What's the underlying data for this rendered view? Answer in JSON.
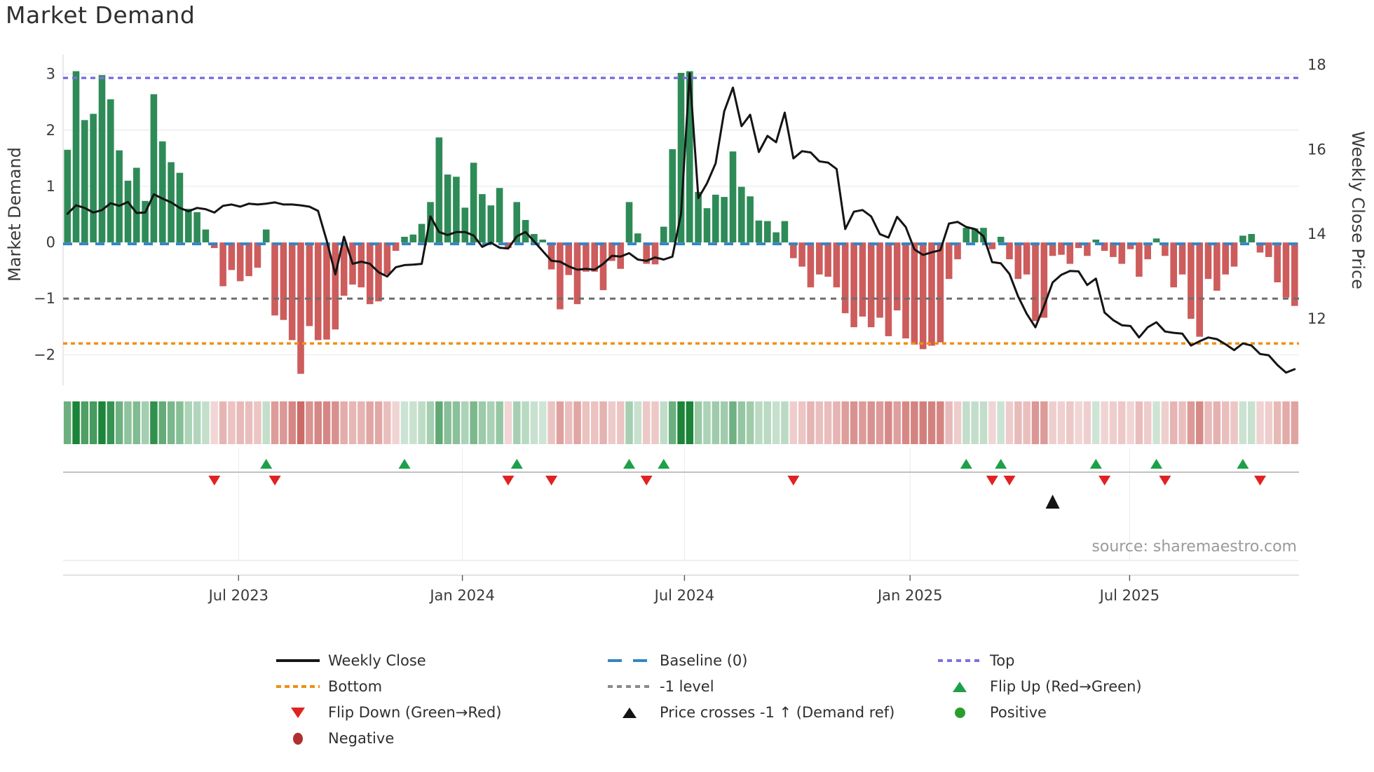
{
  "title": "Market Demand",
  "source": "source: sharemaestro.com",
  "axes": {
    "left_label": "Market Demand",
    "right_label": "Weekly Close Price",
    "left_ticks": [
      {
        "v": 3,
        "label": "3"
      },
      {
        "v": 2,
        "label": "2"
      },
      {
        "v": 1,
        "label": "1"
      },
      {
        "v": 0,
        "label": "0"
      },
      {
        "v": -1,
        "label": "−1"
      },
      {
        "v": -2,
        "label": "−2"
      }
    ],
    "right_ticks": [
      {
        "v": 18,
        "label": "18"
      },
      {
        "v": 16,
        "label": "16"
      },
      {
        "v": 14,
        "label": "14"
      },
      {
        "v": 12,
        "label": "12"
      }
    ],
    "x_ticks": [
      {
        "pos": 19.8,
        "label": "Jul 2023"
      },
      {
        "pos": 45.7,
        "label": "Jan 2024"
      },
      {
        "pos": 71.4,
        "label": "Jul 2024"
      },
      {
        "pos": 97.5,
        "label": "Jan 2025"
      },
      {
        "pos": 122.9,
        "label": "Jul 2025"
      }
    ]
  },
  "legend": {
    "items": [
      {
        "label": "Weekly Close",
        "swatch": "line-black"
      },
      {
        "label": "Bottom",
        "swatch": "dot-orange"
      },
      {
        "label": "Flip Down (Green→Red)",
        "swatch": "tri-down-red"
      },
      {
        "label": "Negative",
        "swatch": "circle-red"
      },
      {
        "label": "Baseline (0)",
        "swatch": "dash-blue"
      },
      {
        "label": "-1 level",
        "swatch": "dot-gray"
      },
      {
        "label": "Price crosses -1 ↑ (Demand ref)",
        "swatch": "tri-up-black"
      },
      {
        "label": "Top",
        "swatch": "dot-purple"
      },
      {
        "label": "Flip Up (Red→Green)",
        "swatch": "tri-up-green"
      },
      {
        "label": "Positive",
        "swatch": "circle-green"
      }
    ]
  },
  "colors": {
    "bar_positive": "#2e8b57",
    "bar_negative": "#cd5c5c",
    "price_line": "#141414",
    "baseline": "#3585c0",
    "top_line": "#7b72e0",
    "bottom_line": "#ef9110",
    "minus1_line": "#6e6e6e",
    "flip_up": "#1da04a",
    "flip_down": "#e02222",
    "price_cross": "#141414",
    "heat_green": "#1b8439",
    "heat_red": "#c04a46",
    "grid": "#e9e9f1",
    "spine": "#d9d9e3",
    "flip_row_line": "#c2c2c2",
    "sub_grid": "#ededf3",
    "axis_line": "#cfcfd6",
    "text": "#3a3a3a",
    "muted_text": "#9a9a9a"
  },
  "chart_data": {
    "type": "bar+line",
    "x_unit": "week",
    "x_start": "2023-02",
    "x_end": "2025-11",
    "n_points": 143,
    "ylabel_left": "Market Demand",
    "ylabel_right": "Weekly Close Price",
    "demand_range": [
      -2.545,
      3.345
    ],
    "price_range": [
      10.43,
      18.24
    ],
    "grid": true,
    "legend_position": "bottom",
    "ref_lines": {
      "top": 2.93,
      "baseline": 0,
      "minus1": -1,
      "bottom": -1.8
    },
    "demand": [
      1.65,
      3.05,
      2.18,
      2.29,
      2.98,
      2.55,
      1.64,
      1.1,
      1.33,
      0.74,
      2.64,
      1.8,
      1.43,
      1.24,
      0.6,
      0.54,
      0.23,
      -0.1,
      -0.78,
      -0.49,
      -0.69,
      -0.6,
      -0.45,
      0.23,
      -1.3,
      -1.38,
      -1.74,
      -2.34,
      -1.49,
      -1.74,
      -1.73,
      -1.55,
      -0.95,
      -0.75,
      -0.8,
      -1.1,
      -1.05,
      -0.57,
      -0.15,
      0.1,
      0.14,
      0.33,
      0.72,
      1.87,
      1.21,
      1.17,
      0.62,
      1.42,
      0.86,
      0.66,
      0.97,
      -0.1,
      0.72,
      0.4,
      0.15,
      0.05,
      -0.48,
      -1.19,
      -0.58,
      -1.1,
      -0.52,
      -0.52,
      -0.85,
      -0.33,
      -0.47,
      0.72,
      0.16,
      -0.38,
      -0.39,
      0.28,
      1.66,
      3.02,
      3.05,
      0.9,
      0.61,
      0.85,
      0.81,
      1.62,
      0.99,
      0.82,
      0.39,
      0.38,
      0.18,
      0.38,
      -0.28,
      -0.43,
      -0.8,
      -0.57,
      -0.61,
      -0.8,
      -1.26,
      -1.51,
      -1.32,
      -1.51,
      -1.34,
      -1.67,
      -1.21,
      -1.71,
      -1.82,
      -1.9,
      -1.84,
      -1.78,
      -0.65,
      -0.3,
      0.26,
      0.25,
      0.26,
      -0.12,
      0.1,
      -0.3,
      -0.65,
      -0.57,
      -1.4,
      -1.34,
      -0.24,
      -0.22,
      -0.38,
      -0.1,
      -0.24,
      0.05,
      -0.15,
      -0.26,
      -0.38,
      -0.12,
      -0.61,
      -0.3,
      0.07,
      -0.24,
      -0.8,
      -0.57,
      -1.36,
      -1.68,
      -0.65,
      -0.86,
      -0.57,
      -0.43,
      0.12,
      0.15,
      -0.18,
      -0.26,
      -0.71,
      -0.98,
      -1.13
    ],
    "price": [
      14.48,
      14.68,
      14.62,
      14.51,
      14.57,
      14.73,
      14.67,
      14.76,
      14.5,
      14.51,
      14.94,
      14.84,
      14.75,
      14.62,
      14.54,
      14.62,
      14.59,
      14.51,
      14.67,
      14.7,
      14.65,
      14.72,
      14.7,
      14.72,
      14.75,
      14.7,
      14.7,
      14.68,
      14.65,
      14.55,
      13.85,
      13.05,
      13.94,
      13.3,
      13.35,
      13.3,
      13.1,
      13.0,
      13.22,
      13.27,
      13.28,
      13.3,
      14.42,
      14.05,
      13.98,
      14.05,
      14.05,
      13.97,
      13.7,
      13.8,
      13.68,
      13.66,
      13.95,
      14.05,
      13.83,
      13.6,
      13.37,
      13.35,
      13.24,
      13.16,
      13.18,
      13.16,
      13.3,
      13.49,
      13.47,
      13.55,
      13.4,
      13.37,
      13.45,
      13.4,
      13.47,
      14.48,
      17.8,
      14.85,
      15.2,
      15.67,
      16.9,
      17.46,
      16.55,
      16.82,
      15.94,
      16.32,
      16.17,
      16.87,
      15.79,
      15.96,
      15.93,
      15.72,
      15.69,
      15.54,
      14.12,
      14.53,
      14.57,
      14.42,
      14.0,
      13.92,
      14.41,
      14.17,
      13.64,
      13.51,
      13.57,
      13.62,
      14.25,
      14.29,
      14.17,
      14.12,
      13.95,
      13.34,
      13.31,
      13.06,
      12.53,
      12.12,
      11.8,
      12.3,
      12.86,
      13.04,
      13.13,
      13.12,
      12.8,
      12.95,
      12.15,
      11.97,
      11.85,
      11.83,
      11.56,
      11.8,
      11.92,
      11.7,
      11.67,
      11.65,
      11.37,
      11.47,
      11.56,
      11.52,
      11.4,
      11.26,
      11.42,
      11.37,
      11.17,
      11.14,
      10.91,
      10.73,
      10.81
    ],
    "markers": {
      "flip_up_weeks": [
        23,
        39,
        52,
        65,
        69,
        104,
        108,
        119,
        126,
        136
      ],
      "flip_down_weeks": [
        17,
        24,
        51,
        56,
        67,
        84,
        107,
        109,
        120,
        127,
        138
      ],
      "price_cross_weeks": [
        114
      ]
    }
  }
}
